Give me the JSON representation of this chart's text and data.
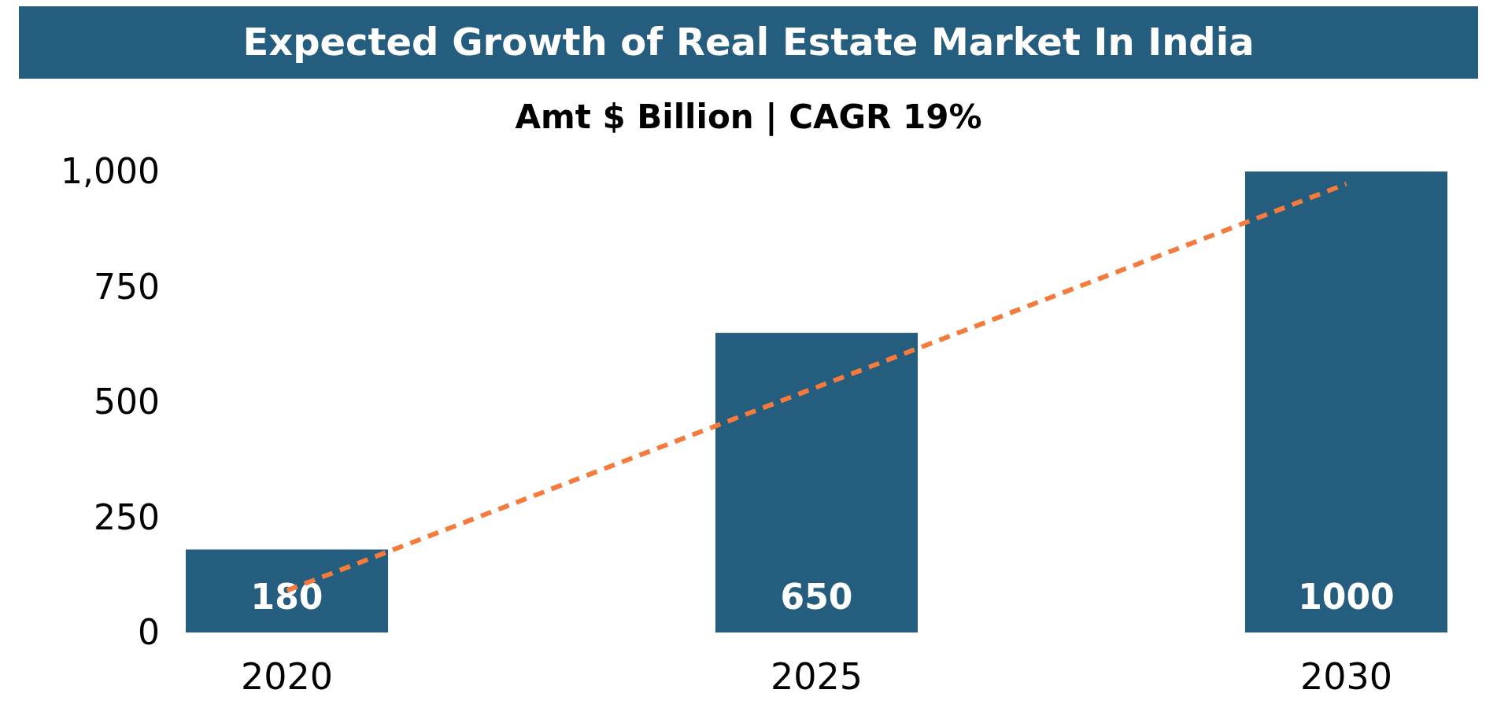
{
  "chart_data": {
    "type": "bar",
    "title": "Expected Growth of Real Estate Market In India",
    "subtitle": "Amt $ Billion | CAGR 19%",
    "categories": [
      "2020",
      "2025",
      "2030"
    ],
    "series": [
      {
        "color": "#255d7e",
        "values": [
          180,
          650,
          1000
        ],
        "value_labels": [
          "180",
          "650",
          "1000"
        ]
      },
      {
        "type": "line",
        "color": "#f47b3b",
        "values": [
          91,
          532,
          973
        ],
        "line_style": "dashed",
        "marker": "none"
      }
    ],
    "ylim": [
      0,
      1000
    ],
    "yticks": [
      0,
      250,
      500,
      750,
      {
        "value": 1000,
        "label": "1,000"
      }
    ],
    "grid": false
  }
}
